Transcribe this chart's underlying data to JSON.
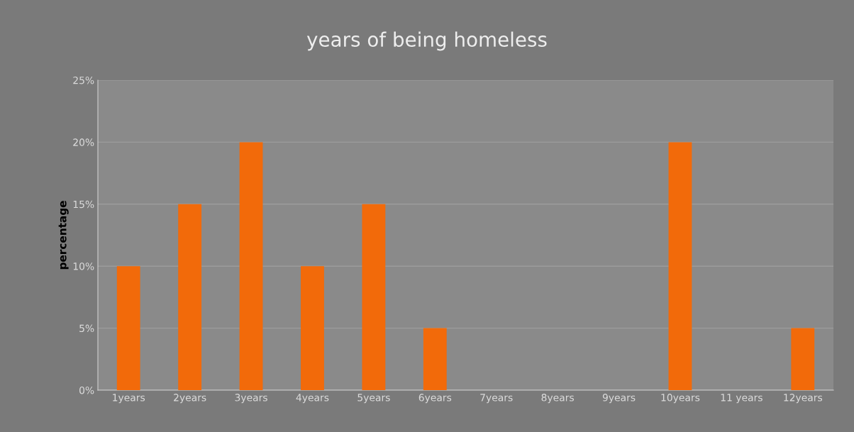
{
  "chart_data": {
    "type": "bar",
    "title": "years of being homeless",
    "ylabel": "percentage",
    "categories": [
      "1years",
      "2years",
      "3years",
      "4years",
      "5years",
      "6years",
      "7years",
      "8years",
      "9years",
      "10years",
      "11 years",
      "12years"
    ],
    "values": [
      10,
      15,
      20,
      10,
      15,
      5,
      0,
      0,
      0,
      20,
      0,
      5
    ],
    "color": "#f26a0a",
    "ylim": [
      0,
      25
    ],
    "yticks": [
      {
        "value": 0,
        "label": "0%"
      },
      {
        "value": 5,
        "label": "5%"
      },
      {
        "value": 10,
        "label": "10%"
      },
      {
        "value": 15,
        "label": "15%"
      },
      {
        "value": 20,
        "label": "20%"
      },
      {
        "value": 25,
        "label": "25%"
      }
    ],
    "grid": "y"
  }
}
